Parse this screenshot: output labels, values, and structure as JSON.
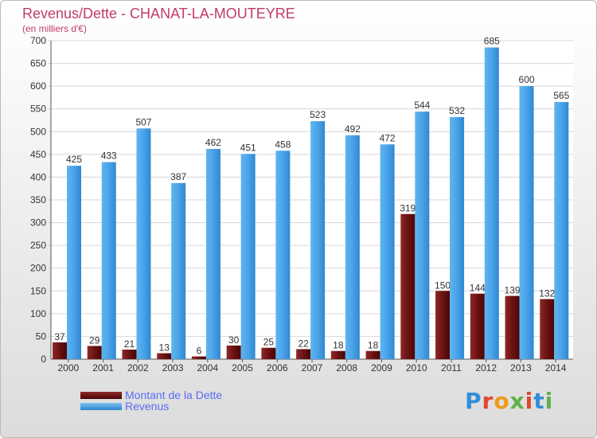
{
  "title": "Revenus/Dette - CHANAT-LA-MOUTEYRE",
  "subtitle": "(en milliers d'€)",
  "logo": "Proxiti",
  "colors": {
    "title": "#c13b6c",
    "debt": "#6b1212",
    "revenue": "#4aa3e8",
    "legend_text": "#5a6cf2"
  },
  "legend": [
    {
      "label": "Montant de la Dette",
      "color": "#6b1212"
    },
    {
      "label": "Revenus",
      "color": "#4aa3e8"
    }
  ],
  "chart_data": {
    "type": "bar",
    "categories": [
      "2000",
      "2001",
      "2002",
      "2003",
      "2004",
      "2005",
      "2006",
      "2007",
      "2008",
      "2009",
      "2010",
      "2011",
      "2012",
      "2013",
      "2014"
    ],
    "series": [
      {
        "name": "Montant de la Dette",
        "values": [
          37,
          29,
          21,
          13,
          6,
          30,
          25,
          22,
          18,
          18,
          319,
          150,
          144,
          139,
          132
        ]
      },
      {
        "name": "Revenus",
        "values": [
          425,
          433,
          507,
          387,
          462,
          451,
          458,
          523,
          492,
          472,
          544,
          532,
          685,
          600,
          565
        ]
      }
    ],
    "yticks": [
      0,
      50,
      100,
      150,
      200,
      250,
      300,
      350,
      400,
      450,
      500,
      550,
      600,
      650,
      700
    ],
    "ylim": [
      0,
      700
    ],
    "grid": true,
    "legend_position": "bottom-left"
  }
}
